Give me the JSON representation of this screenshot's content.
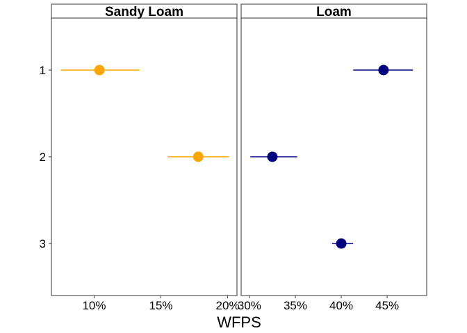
{
  "chart_data": {
    "type": "scatter",
    "xlabel": "WFPS",
    "ylabel": "",
    "y_categories": [
      "1",
      "2",
      "3"
    ],
    "grid": false,
    "panels": [
      {
        "title": "Sandy Loam",
        "color": "#FFA500",
        "xlim": [
          0.068,
          0.207
        ],
        "x_ticks": [
          {
            "value": 0.1,
            "label": "10%"
          },
          {
            "value": 0.15,
            "label": "15%"
          },
          {
            "value": 0.2,
            "label": "20%"
          }
        ],
        "points": [
          {
            "category": "1",
            "x": 0.104,
            "xmin": 0.075,
            "xmax": 0.134
          },
          {
            "category": "2",
            "x": 0.178,
            "xmin": 0.155,
            "xmax": 0.201
          }
        ]
      },
      {
        "title": "Loam",
        "color": "#00007F",
        "xlim": [
          0.291,
          0.493
        ],
        "x_ticks": [
          {
            "value": 0.3,
            "label": "30%"
          },
          {
            "value": 0.35,
            "label": "35%"
          },
          {
            "value": 0.4,
            "label": "40%"
          },
          {
            "value": 0.45,
            "label": "45%"
          }
        ],
        "points": [
          {
            "category": "1",
            "x": 0.446,
            "xmin": 0.413,
            "xmax": 0.478
          },
          {
            "category": "2",
            "x": 0.325,
            "xmin": 0.301,
            "xmax": 0.352
          },
          {
            "category": "3",
            "x": 0.4,
            "xmin": 0.39,
            "xmax": 0.413
          }
        ]
      }
    ]
  }
}
